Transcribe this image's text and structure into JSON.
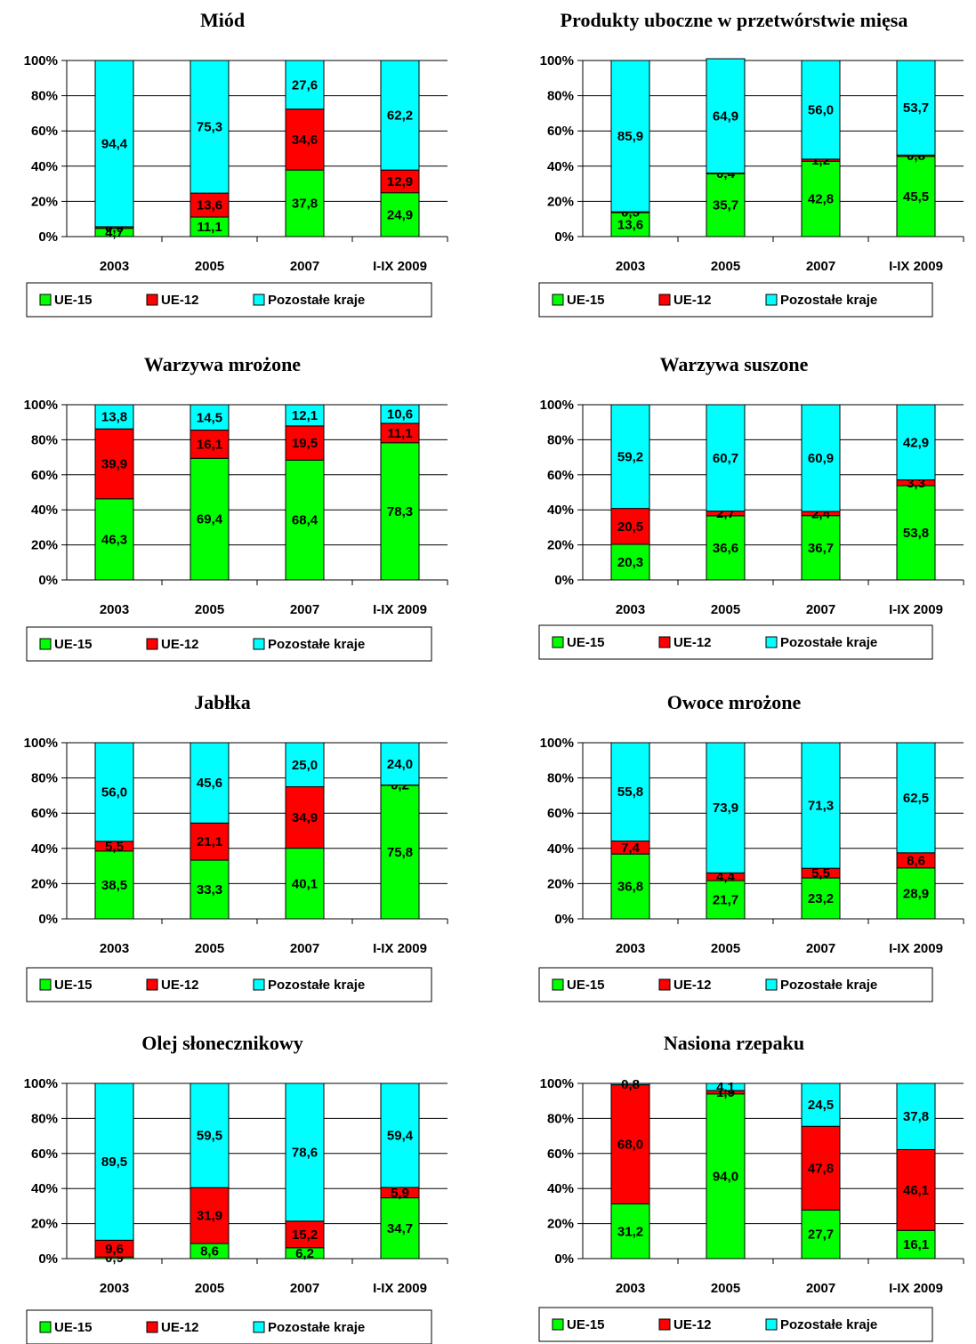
{
  "colors": {
    "ue15": "#00ff00",
    "ue12": "#ff0000",
    "pozostale": "#00ffff"
  },
  "legend": [
    "UE-15",
    "UE-12",
    "Pozostałe kraje"
  ],
  "chart_data": [
    {
      "type": "bar",
      "stacked": true,
      "title": "Miód",
      "categories": [
        "2003",
        "2005",
        "2007",
        "I-IX 2009"
      ],
      "yticks": [
        "0%",
        "20%",
        "40%",
        "60%",
        "80%",
        "100%"
      ],
      "ylim": [
        0,
        100
      ],
      "series": [
        {
          "name": "UE-15",
          "values": [
            4.7,
            11.1,
            37.8,
            24.9
          ],
          "labels": [
            "4,7",
            "11,1",
            "37,8",
            "24,9"
          ]
        },
        {
          "name": "UE-12",
          "values": [
            0.9,
            13.6,
            34.6,
            12.9
          ],
          "labels": [
            "0,9",
            "13,6",
            "34,6",
            "12,9"
          ]
        },
        {
          "name": "Pozostałe kraje",
          "values": [
            94.4,
            75.3,
            27.6,
            62.2
          ],
          "labels": [
            "94,4",
            "75,3",
            "27,6",
            "62,2"
          ]
        }
      ]
    },
    {
      "type": "bar",
      "stacked": true,
      "title": "Produkty uboczne w przetwórstwie mięsa",
      "categories": [
        "2003",
        "2005",
        "2007",
        "I-IX 2009"
      ],
      "yticks": [
        "0%",
        "20%",
        "40%",
        "60%",
        "80%",
        "100%"
      ],
      "ylim": [
        0,
        100
      ],
      "series": [
        {
          "name": "UE-15",
          "values": [
            13.6,
            35.7,
            42.8,
            45.5
          ],
          "labels": [
            "13,6",
            "35,7",
            "42,8",
            "45,5"
          ]
        },
        {
          "name": "UE-12",
          "values": [
            0.5,
            0.4,
            1.2,
            0.8
          ],
          "labels": [
            "0,5",
            "0,4",
            "1,2",
            "0,8"
          ]
        },
        {
          "name": "Pozostałe kraje",
          "values": [
            85.9,
            64.9,
            56.0,
            53.7
          ],
          "labels": [
            "85,9",
            "64,9",
            "56,0",
            "53,7"
          ]
        }
      ]
    },
    {
      "type": "bar",
      "stacked": true,
      "title": "Warzywa mrożone",
      "categories": [
        "2003",
        "2005",
        "2007",
        "I-IX 2009"
      ],
      "yticks": [
        "0%",
        "20%",
        "40%",
        "60%",
        "80%",
        "100%"
      ],
      "ylim": [
        0,
        100
      ],
      "series": [
        {
          "name": "UE-15",
          "values": [
            46.3,
            69.4,
            68.4,
            78.3
          ],
          "labels": [
            "46,3",
            "69,4",
            "68,4",
            "78,3"
          ]
        },
        {
          "name": "UE-12",
          "values": [
            39.9,
            16.1,
            19.5,
            11.1
          ],
          "labels": [
            "39,9",
            "16,1",
            "19,5",
            "11,1"
          ]
        },
        {
          "name": "Pozostałe kraje",
          "values": [
            13.8,
            14.5,
            12.1,
            10.6
          ],
          "labels": [
            "13,8",
            "14,5",
            "12,1",
            "10,6"
          ]
        }
      ]
    },
    {
      "type": "bar",
      "stacked": true,
      "title": "Warzywa suszone",
      "categories": [
        "2003",
        "2005",
        "2007",
        "I-IX 2009"
      ],
      "yticks": [
        "0%",
        "20%",
        "40%",
        "60%",
        "80%",
        "100%"
      ],
      "ylim": [
        0,
        100
      ],
      "series": [
        {
          "name": "UE-15",
          "values": [
            20.3,
            36.6,
            36.7,
            53.8
          ],
          "labels": [
            "20,3",
            "36,6",
            "36,7",
            "53,8"
          ]
        },
        {
          "name": "UE-12",
          "values": [
            20.5,
            2.7,
            2.4,
            3.3
          ],
          "labels": [
            "20,5",
            "2,7",
            "2,4",
            "3,3"
          ]
        },
        {
          "name": "Pozostałe kraje",
          "values": [
            59.2,
            60.7,
            60.9,
            42.9
          ],
          "labels": [
            "59,2",
            "60,7",
            "60,9",
            "42,9"
          ]
        }
      ]
    },
    {
      "type": "bar",
      "stacked": true,
      "title": "Jabłka",
      "categories": [
        "2003",
        "2005",
        "2007",
        "I-IX 2009"
      ],
      "yticks": [
        "0%",
        "20%",
        "40%",
        "60%",
        "80%",
        "100%"
      ],
      "ylim": [
        0,
        100
      ],
      "series": [
        {
          "name": "UE-15",
          "values": [
            38.5,
            33.3,
            40.1,
            75.8
          ],
          "labels": [
            "38,5",
            "33,3",
            "40,1",
            "75,8"
          ]
        },
        {
          "name": "UE-12",
          "values": [
            5.5,
            21.1,
            34.9,
            0.2
          ],
          "labels": [
            "5,5",
            "21,1",
            "34,9",
            "0,2"
          ]
        },
        {
          "name": "Pozostałe kraje",
          "values": [
            56.0,
            45.6,
            25.0,
            24.0
          ],
          "labels": [
            "56,0",
            "45,6",
            "25,0",
            "24,0"
          ]
        }
      ]
    },
    {
      "type": "bar",
      "stacked": true,
      "title": "Owoce mrożone",
      "categories": [
        "2003",
        "2005",
        "2007",
        "I-IX 2009"
      ],
      "yticks": [
        "0%",
        "20%",
        "40%",
        "60%",
        "80%",
        "100%"
      ],
      "ylim": [
        0,
        100
      ],
      "series": [
        {
          "name": "UE-15",
          "values": [
            36.8,
            21.7,
            23.2,
            28.9
          ],
          "labels": [
            "36,8",
            "21,7",
            "23,2",
            "28,9"
          ]
        },
        {
          "name": "UE-12",
          "values": [
            7.4,
            4.4,
            5.5,
            8.6
          ],
          "labels": [
            "7,4",
            "4,4",
            "5,5",
            "8,6"
          ]
        },
        {
          "name": "Pozostałe kraje",
          "values": [
            55.8,
            73.9,
            71.3,
            62.5
          ],
          "labels": [
            "55,8",
            "73,9",
            "71,3",
            "62,5"
          ]
        }
      ]
    },
    {
      "type": "bar",
      "stacked": true,
      "title": "Olej słonecznikowy",
      "categories": [
        "2003",
        "2005",
        "2007",
        "I-IX 2009"
      ],
      "yticks": [
        "0%",
        "20%",
        "40%",
        "60%",
        "80%",
        "100%"
      ],
      "ylim": [
        0,
        100
      ],
      "series": [
        {
          "name": "UE-15",
          "values": [
            0.9,
            8.6,
            6.2,
            34.7
          ],
          "labels": [
            "0,9",
            "8,6",
            "6,2",
            "34,7"
          ]
        },
        {
          "name": "UE-12",
          "values": [
            9.6,
            31.9,
            15.2,
            5.9
          ],
          "labels": [
            "9,6",
            "31,9",
            "15,2",
            "5,9"
          ]
        },
        {
          "name": "Pozostałe kraje",
          "values": [
            89.5,
            59.5,
            78.6,
            59.4
          ],
          "labels": [
            "89,5",
            "59,5",
            "78,6",
            "59,4"
          ]
        }
      ]
    },
    {
      "type": "bar",
      "stacked": true,
      "title": "Nasiona rzepaku",
      "categories": [
        "2003",
        "2005",
        "2007",
        "I-IX 2009"
      ],
      "yticks": [
        "0%",
        "20%",
        "40%",
        "60%",
        "80%",
        "100%"
      ],
      "ylim": [
        0,
        100
      ],
      "series": [
        {
          "name": "UE-15",
          "values": [
            31.2,
            94.0,
            27.7,
            16.1
          ],
          "labels": [
            "31,2",
            "94,0",
            "27,7",
            "16,1"
          ]
        },
        {
          "name": "UE-12",
          "values": [
            68.0,
            1.9,
            47.8,
            46.1
          ],
          "labels": [
            "68,0",
            "1,9",
            "47,8",
            "46,1"
          ]
        },
        {
          "name": "Pozostałe kraje",
          "values": [
            0.8,
            4.1,
            24.5,
            37.8
          ],
          "labels": [
            "0,8",
            "4,1",
            "24,5",
            "37,8"
          ]
        }
      ]
    }
  ]
}
